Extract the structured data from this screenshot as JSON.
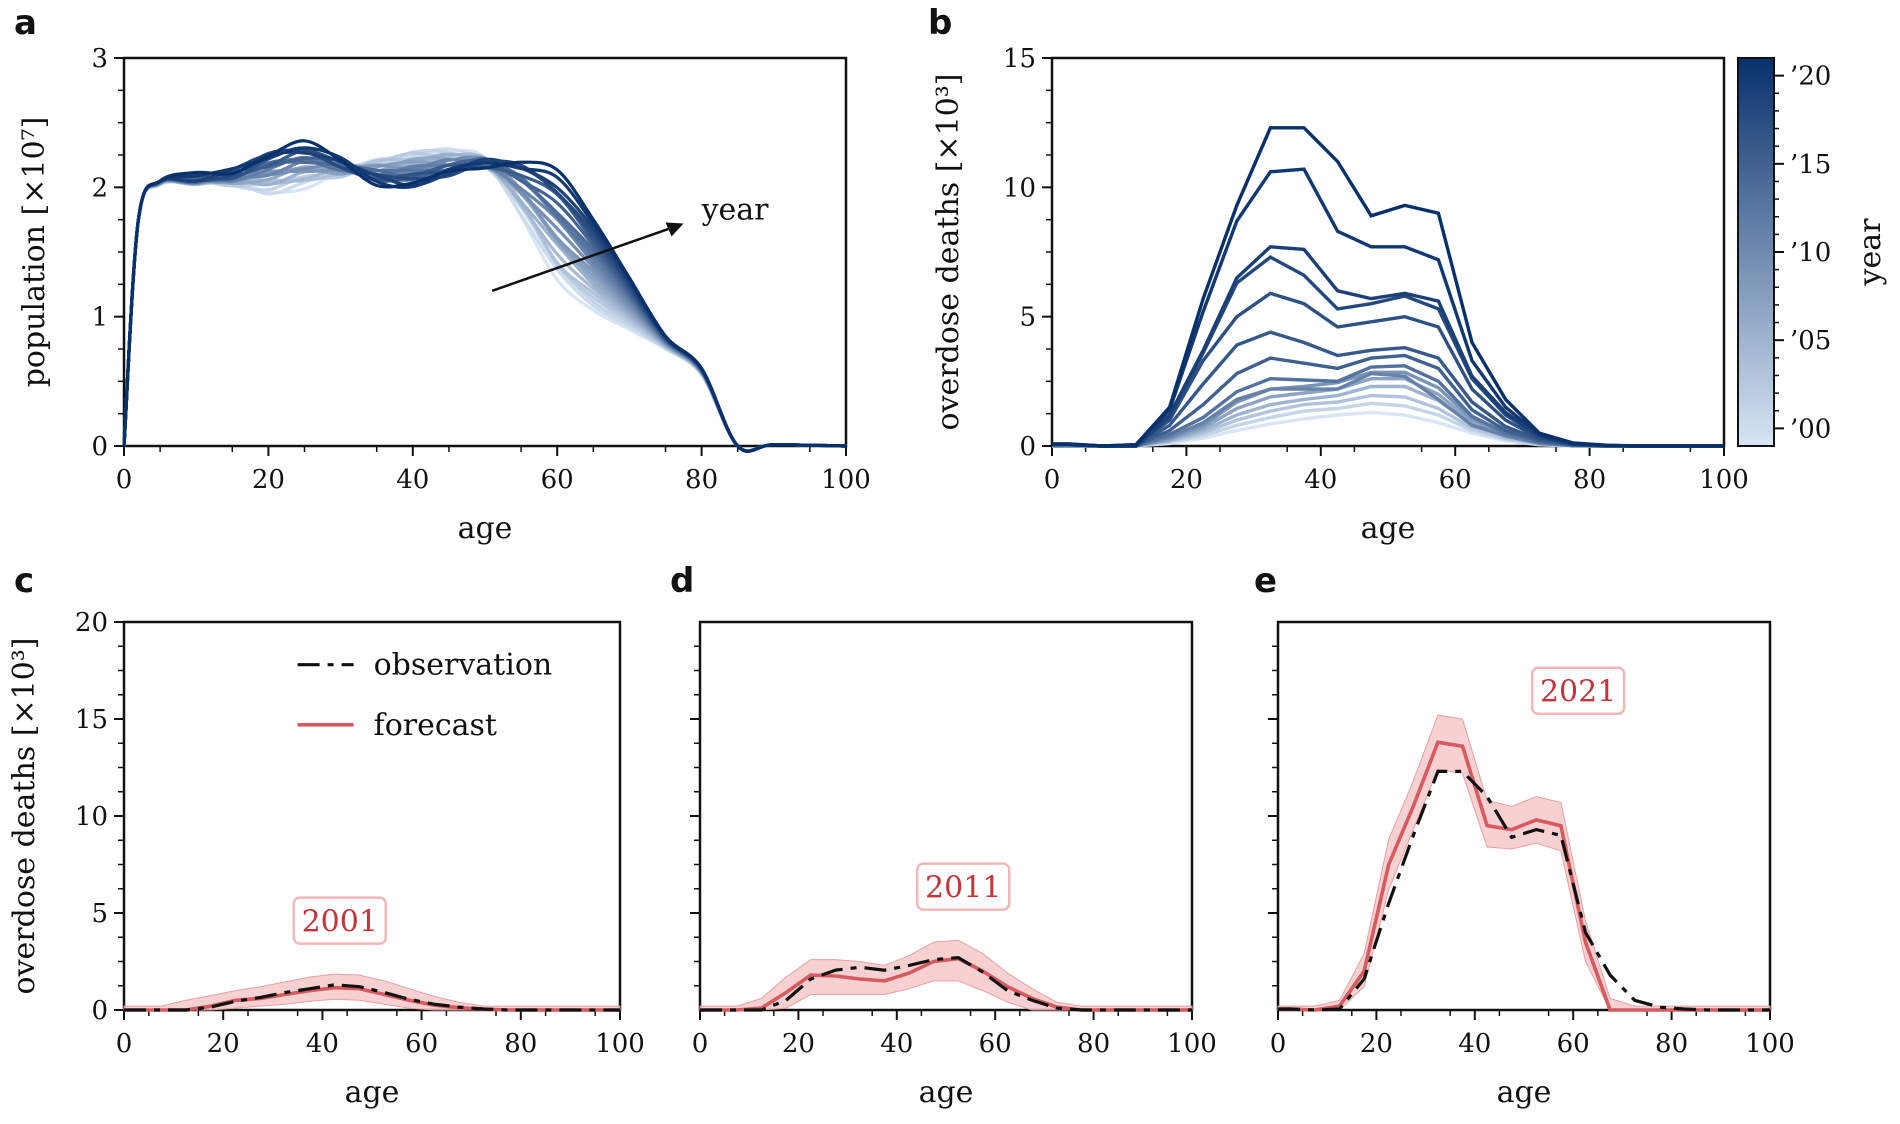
{
  "colors": {
    "blue_light": "#d7e5f4",
    "blue_dark": "#08306b",
    "forecast": "#d65a5f",
    "band": "#f4c1c3",
    "observation": "#111111",
    "axis": "#111111"
  },
  "figure": {
    "panels": [
      {
        "letter": "a"
      },
      {
        "letter": "b"
      },
      {
        "letter": "c"
      },
      {
        "letter": "d"
      },
      {
        "letter": "e"
      }
    ]
  },
  "chart_data": [
    {
      "id": "a",
      "type": "line",
      "title": "",
      "xlabel": "age",
      "ylabel": "population [×10⁷]",
      "xlim": [
        0,
        100
      ],
      "ylim": [
        0,
        3
      ],
      "xticks": [
        "0",
        "20",
        "40",
        "60",
        "80",
        "100"
      ],
      "yticks": [
        "0",
        "1",
        "2",
        "3"
      ],
      "annotation": "year",
      "series_note": "22 yearly curves 1999–2020, light to dark blue",
      "series_first": {
        "name": "1999",
        "x": [
          0,
          2,
          5,
          10,
          15,
          20,
          25,
          30,
          35,
          40,
          45,
          50,
          55,
          60,
          65,
          70,
          75,
          80,
          85,
          90,
          100
        ],
        "y": [
          0,
          1.75,
          2.02,
          2.05,
          2.03,
          1.97,
          2.02,
          2.1,
          2.2,
          2.27,
          2.27,
          2.2,
          1.8,
          1.3,
          1.05,
          0.9,
          0.75,
          0.55,
          0,
          0.01,
          0
        ]
      },
      "series_last": {
        "name": "2020",
        "x": [
          0,
          2,
          5,
          10,
          15,
          20,
          25,
          30,
          35,
          40,
          45,
          50,
          55,
          60,
          65,
          70,
          75,
          80,
          85,
          90,
          100
        ],
        "y": [
          0,
          1.75,
          2.05,
          2.08,
          2.12,
          2.27,
          2.33,
          2.2,
          2.05,
          2.02,
          2.1,
          2.18,
          2.2,
          2.1,
          1.75,
          1.3,
          0.85,
          0.6,
          0,
          0.01,
          0
        ]
      }
    },
    {
      "id": "b",
      "type": "line",
      "xlabel": "age",
      "ylabel": "overdose deaths [×10³]",
      "xlim": [
        0,
        100
      ],
      "ylim": [
        0,
        15
      ],
      "xticks": [
        "0",
        "20",
        "40",
        "60",
        "80",
        "100"
      ],
      "yticks": [
        "0",
        "5",
        "10",
        "15"
      ],
      "x": [
        0,
        2.5,
        7.5,
        12.5,
        17.5,
        22.5,
        27.5,
        32.5,
        37.5,
        42.5,
        47.5,
        52.5,
        57.5,
        62.5,
        67.5,
        72.5,
        77.5,
        82.5,
        87.5,
        92.5,
        100
      ],
      "colorbar": {
        "label": "year",
        "ticks": [
          "’00",
          "’05",
          "’10",
          "’15",
          "’20"
        ],
        "range": [
          1999,
          2021
        ]
      },
      "series": [
        {
          "name": "1999",
          "values": [
            0,
            0,
            0,
            0,
            0.1,
            0.3,
            0.6,
            0.85,
            1.05,
            1.2,
            1.3,
            1.2,
            0.9,
            0.5,
            0.2,
            0.05,
            0,
            0,
            0,
            0,
            0
          ]
        },
        {
          "name": "2001",
          "values": [
            0,
            0,
            0,
            0,
            0.15,
            0.4,
            0.8,
            1.1,
            1.35,
            1.45,
            1.65,
            1.55,
            1.2,
            0.6,
            0.25,
            0.06,
            0,
            0,
            0,
            0,
            0
          ]
        },
        {
          "name": "2003",
          "values": [
            0,
            0,
            0,
            0,
            0.18,
            0.5,
            1.0,
            1.35,
            1.6,
            1.7,
            1.95,
            1.9,
            1.45,
            0.7,
            0.3,
            0.08,
            0.01,
            0,
            0,
            0,
            0
          ]
        },
        {
          "name": "2005",
          "values": [
            0,
            0,
            0,
            0,
            0.2,
            0.6,
            1.2,
            1.6,
            1.8,
            1.95,
            2.3,
            2.3,
            1.75,
            0.85,
            0.35,
            0.1,
            0.01,
            0,
            0,
            0,
            0
          ]
        },
        {
          "name": "2007",
          "values": [
            0,
            0,
            0,
            0,
            0.25,
            0.7,
            1.45,
            1.9,
            2.05,
            2.2,
            2.6,
            2.6,
            2.0,
            0.95,
            0.4,
            0.12,
            0.02,
            0,
            0,
            0,
            0
          ]
        },
        {
          "name": "2009",
          "values": [
            0,
            0,
            0,
            0,
            0.3,
            0.8,
            1.7,
            2.2,
            2.3,
            2.45,
            2.85,
            2.85,
            2.25,
            1.05,
            0.45,
            0.13,
            0.02,
            0,
            0,
            0,
            0
          ]
        },
        {
          "name": "2011",
          "values": [
            0.05,
            0.05,
            0,
            0,
            0.35,
            0.9,
            1.8,
            2.2,
            2.2,
            2.2,
            2.8,
            2.7,
            1.8,
            0.8,
            0.4,
            0.1,
            0.02,
            0,
            0,
            0,
            0
          ]
        },
        {
          "name": "2013",
          "values": [
            0.05,
            0.05,
            0,
            0,
            0.45,
            1.1,
            2.1,
            2.6,
            2.55,
            2.5,
            3.05,
            3.1,
            2.5,
            1.15,
            0.5,
            0.15,
            0.03,
            0,
            0,
            0,
            0
          ]
        },
        {
          "name": "2015",
          "values": [
            0.05,
            0.05,
            0,
            0,
            0.6,
            1.6,
            2.8,
            3.4,
            3.2,
            3.0,
            3.4,
            3.5,
            3.0,
            1.4,
            0.6,
            0.2,
            0.04,
            0,
            0,
            0,
            0
          ]
        },
        {
          "name": "2016",
          "values": [
            0.05,
            0.05,
            0,
            0,
            0.8,
            2.4,
            3.9,
            4.4,
            4.0,
            3.5,
            3.7,
            3.8,
            3.4,
            1.7,
            0.75,
            0.25,
            0.05,
            0.01,
            0,
            0,
            0
          ]
        },
        {
          "name": "2017",
          "values": [
            0.05,
            0.05,
            0,
            0,
            1.0,
            3.3,
            5.0,
            5.9,
            5.5,
            4.6,
            4.8,
            5.0,
            4.6,
            2.2,
            1.0,
            0.3,
            0.06,
            0.01,
            0,
            0,
            0
          ]
        },
        {
          "name": "2018",
          "values": [
            0.05,
            0.05,
            0,
            0,
            1.1,
            3.6,
            6.3,
            7.3,
            6.6,
            5.3,
            5.5,
            5.8,
            5.3,
            2.6,
            1.2,
            0.35,
            0.07,
            0.01,
            0,
            0,
            0
          ]
        },
        {
          "name": "2019",
          "values": [
            0.05,
            0.05,
            0,
            0,
            1.2,
            3.7,
            6.5,
            7.7,
            7.6,
            6.0,
            5.7,
            5.9,
            5.6,
            2.7,
            1.3,
            0.4,
            0.08,
            0.01,
            0,
            0,
            0
          ]
        },
        {
          "name": "2020",
          "values": [
            0.08,
            0.08,
            0,
            0.05,
            1.4,
            5.2,
            8.7,
            10.6,
            10.7,
            8.3,
            7.7,
            7.7,
            7.2,
            3.3,
            1.5,
            0.45,
            0.1,
            0.02,
            0,
            0,
            0
          ]
        },
        {
          "name": "2021",
          "values": [
            0.08,
            0.08,
            0,
            0.05,
            1.5,
            5.7,
            9.3,
            12.3,
            12.3,
            11.0,
            8.9,
            9.3,
            9.0,
            4.0,
            1.8,
            0.5,
            0.12,
            0.03,
            0,
            0,
            0
          ]
        }
      ]
    },
    {
      "id": "c",
      "type": "line",
      "xlabel": "age",
      "ylabel": "overdose deaths [×10³]",
      "xlim": [
        0,
        100
      ],
      "ylim": [
        0,
        20
      ],
      "xticks": [
        "0",
        "20",
        "40",
        "60",
        "80",
        "100"
      ],
      "yticks": [
        "0",
        "5",
        "10",
        "15",
        "20"
      ],
      "year_label": "2001",
      "legend": {
        "observation": "observation",
        "forecast": "forecast"
      },
      "x": [
        0,
        2.5,
        7.5,
        12.5,
        17.5,
        22.5,
        27.5,
        32.5,
        37.5,
        42.5,
        47.5,
        52.5,
        57.5,
        62.5,
        67.5,
        72.5,
        77.5,
        82.5,
        87.5,
        92.5,
        100
      ],
      "observation": [
        0,
        0,
        0,
        0,
        0.15,
        0.45,
        0.65,
        0.9,
        1.1,
        1.3,
        1.2,
        0.9,
        0.55,
        0.3,
        0.15,
        0.05,
        0,
        0,
        0,
        0,
        0
      ],
      "forecast": [
        0,
        0,
        0,
        0,
        0.2,
        0.5,
        0.6,
        0.8,
        1.0,
        1.15,
        1.1,
        0.8,
        0.5,
        0.25,
        0.12,
        0.04,
        0,
        0,
        0,
        0,
        0
      ],
      "band_low": [
        0,
        0,
        0,
        0,
        0,
        0.1,
        0.2,
        0.3,
        0.45,
        0.55,
        0.5,
        0.3,
        0.1,
        0,
        0,
        0,
        0,
        0,
        0,
        0,
        0
      ],
      "band_high": [
        0.2,
        0.2,
        0.2,
        0.5,
        0.75,
        1.0,
        1.2,
        1.45,
        1.7,
        1.85,
        1.8,
        1.5,
        1.1,
        0.7,
        0.4,
        0.2,
        0.2,
        0.2,
        0.2,
        0.2,
        0.2
      ]
    },
    {
      "id": "d",
      "type": "line",
      "xlabel": "age",
      "xlim": [
        0,
        100
      ],
      "ylim": [
        0,
        20
      ],
      "xticks": [
        "0",
        "20",
        "40",
        "60",
        "80",
        "100"
      ],
      "year_label": "2011",
      "x": [
        0,
        2.5,
        7.5,
        12.5,
        17.5,
        22.5,
        27.5,
        32.5,
        37.5,
        42.5,
        47.5,
        52.5,
        57.5,
        62.5,
        67.5,
        72.5,
        77.5,
        82.5,
        87.5,
        92.5,
        100
      ],
      "observation": [
        0,
        0,
        0,
        0,
        0.5,
        1.6,
        2.05,
        2.2,
        2.05,
        2.3,
        2.6,
        2.7,
        1.95,
        1.0,
        0.5,
        0.1,
        0,
        0,
        0,
        0,
        0
      ],
      "forecast": [
        0,
        0,
        0,
        0.1,
        0.9,
        1.8,
        1.75,
        1.6,
        1.5,
        1.9,
        2.5,
        2.65,
        2.0,
        1.2,
        0.6,
        0.15,
        0,
        0,
        0,
        0,
        0
      ],
      "band_low": [
        0,
        0,
        0,
        0,
        0.1,
        0.8,
        0.8,
        0.8,
        0.8,
        1.1,
        1.5,
        1.5,
        1.0,
        0.4,
        0,
        0,
        0,
        0,
        0,
        0,
        0
      ],
      "band_high": [
        0.2,
        0.2,
        0.2,
        0.6,
        1.7,
        2.6,
        2.6,
        2.5,
        2.3,
        2.8,
        3.5,
        3.6,
        2.9,
        1.9,
        1.1,
        0.4,
        0.2,
        0.2,
        0.2,
        0.2,
        0.2
      ]
    },
    {
      "id": "e",
      "type": "line",
      "xlabel": "age",
      "xlim": [
        0,
        100
      ],
      "ylim": [
        0,
        20
      ],
      "xticks": [
        "0",
        "20",
        "40",
        "60",
        "80",
        "100"
      ],
      "year_label": "2021",
      "x": [
        0,
        2.5,
        7.5,
        12.5,
        17.5,
        22.5,
        27.5,
        32.5,
        37.5,
        42.5,
        47.5,
        52.5,
        57.5,
        62.5,
        67.5,
        72.5,
        77.5,
        82.5,
        87.5,
        92.5,
        100
      ],
      "observation": [
        0.05,
        0.05,
        0,
        0.05,
        1.6,
        5.5,
        9.0,
        12.3,
        12.3,
        11.0,
        8.9,
        9.3,
        9.0,
        4.0,
        1.8,
        0.5,
        0.15,
        0.05,
        0,
        0,
        0
      ],
      "forecast": [
        0.05,
        0.05,
        0,
        0.2,
        2.0,
        7.5,
        10.5,
        13.8,
        13.6,
        9.5,
        9.3,
        9.8,
        9.5,
        3.5,
        0,
        0,
        0,
        0,
        0,
        0,
        0
      ],
      "band_low": [
        0,
        0,
        0,
        0,
        1.2,
        6.2,
        9.3,
        12.4,
        12.2,
        8.4,
        8.3,
        8.6,
        8.2,
        2.5,
        0,
        0,
        0,
        0,
        0,
        0,
        0
      ],
      "band_high": [
        0.2,
        0.2,
        0.2,
        0.5,
        2.9,
        8.8,
        11.8,
        15.2,
        15.0,
        10.8,
        10.5,
        11.0,
        10.7,
        4.6,
        0.6,
        0.2,
        0.2,
        0.2,
        0.2,
        0.2,
        0.2
      ]
    }
  ]
}
